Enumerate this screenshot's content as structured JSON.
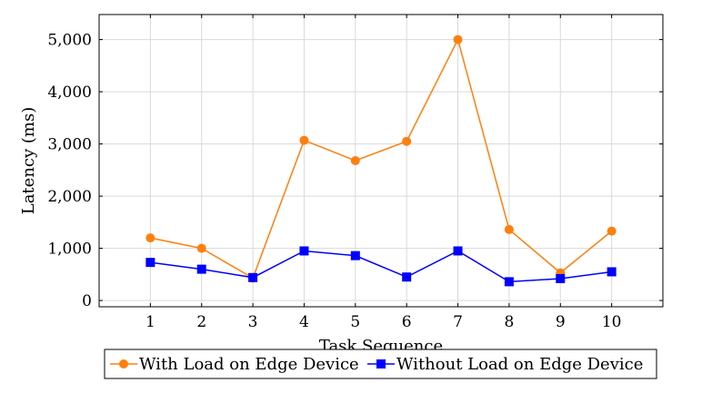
{
  "chart_data": {
    "type": "line",
    "xlabel": "Task Sequence",
    "ylabel": "Latency (ms)",
    "x": [
      1,
      2,
      3,
      4,
      5,
      6,
      7,
      8,
      9,
      10
    ],
    "x_tick_labels": [
      "1",
      "2",
      "3",
      "4",
      "5",
      "6",
      "7",
      "8",
      "9",
      "10"
    ],
    "xlim": [
      0,
      11
    ],
    "ylim": [
      -120,
      5480
    ],
    "y_ticks": [
      0,
      1000,
      2000,
      3000,
      4000,
      5000
    ],
    "y_tick_labels": [
      "0",
      "1,000",
      "2,000",
      "3,000",
      "4,000",
      "5,000"
    ],
    "grid": true,
    "legend_position": "bottom-center",
    "series": [
      {
        "name": "With Load on Edge Device",
        "color": "#ff7f0e",
        "marker": "circle",
        "values": [
          1200,
          1000,
          430,
          3070,
          2680,
          3050,
          5000,
          1360,
          530,
          1330
        ]
      },
      {
        "name": "Without Load on Edge Device",
        "color": "#0000ff",
        "marker": "square",
        "values": [
          730,
          600,
          440,
          950,
          860,
          450,
          950,
          360,
          420,
          550
        ]
      }
    ]
  }
}
